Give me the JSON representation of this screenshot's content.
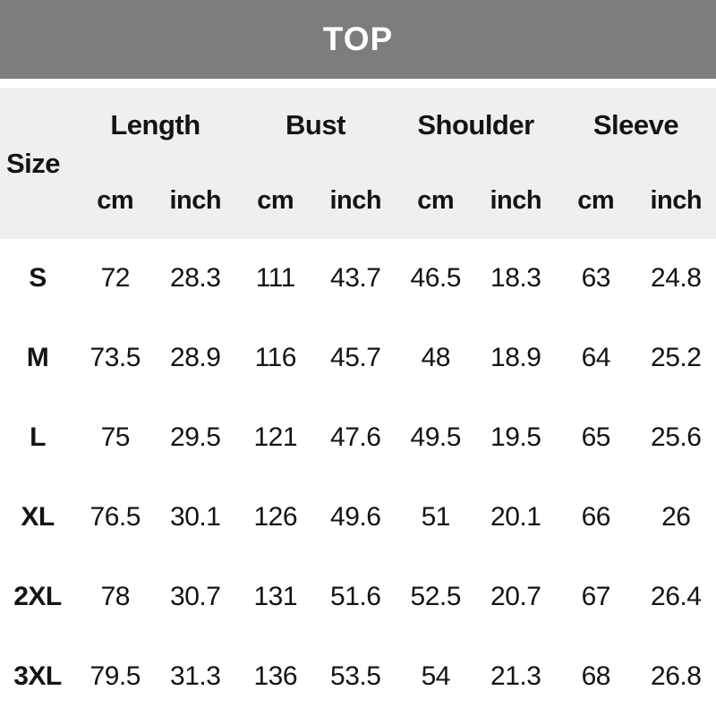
{
  "banner": {
    "title": "TOP"
  },
  "table": {
    "size_label": "Size",
    "groups": [
      {
        "label": "Length"
      },
      {
        "label": "Bust"
      },
      {
        "label": "Shoulder"
      },
      {
        "label": "Sleeve"
      }
    ],
    "unit_cm": "cm",
    "unit_inch": "inch",
    "rows": [
      {
        "size": "S",
        "values": [
          "72",
          "28.3",
          "111",
          "43.7",
          "46.5",
          "18.3",
          "63",
          "24.8"
        ]
      },
      {
        "size": "M",
        "values": [
          "73.5",
          "28.9",
          "116",
          "45.7",
          "48",
          "18.9",
          "64",
          "25.2"
        ]
      },
      {
        "size": "L",
        "values": [
          "75",
          "29.5",
          "121",
          "47.6",
          "49.5",
          "19.5",
          "65",
          "25.6"
        ]
      },
      {
        "size": "XL",
        "values": [
          "76.5",
          "30.1",
          "126",
          "49.6",
          "51",
          "20.1",
          "66",
          "26"
        ]
      },
      {
        "size": "2XL",
        "values": [
          "78",
          "30.7",
          "131",
          "51.6",
          "52.5",
          "20.7",
          "67",
          "26.4"
        ]
      },
      {
        "size": "3XL",
        "values": [
          "79.5",
          "31.3",
          "136",
          "53.5",
          "54",
          "21.3",
          "68",
          "26.8"
        ]
      }
    ]
  },
  "colors": {
    "banner_bg": "#7d7d7d",
    "banner_text": "#ffffff",
    "header_bg": "#efefef",
    "text": "#141414",
    "body_bg": "#ffffff"
  }
}
